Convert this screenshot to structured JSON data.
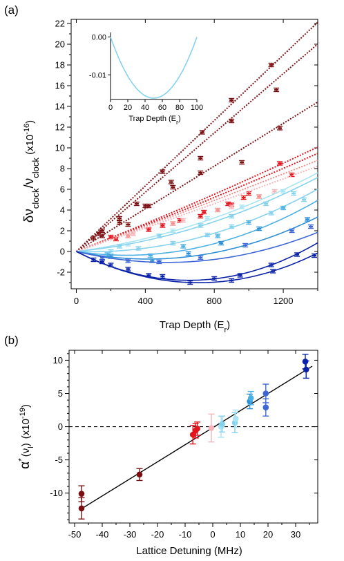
{
  "panels": {
    "a": "(a)",
    "b": "(b)"
  },
  "colors": {
    "darkred": "#7a0f12",
    "red": "#e0141c",
    "salmon": "#f38d8a",
    "pink": "#f5b4b9",
    "paleblue": "#a8e4f2",
    "lightblue": "#86d2ee",
    "skyblue": "#4cb0e4",
    "blue": "#2f8fd6",
    "medblue": "#3d67d6",
    "darkblue": "#0a22a8"
  },
  "chart_data": [
    {
      "type": "line",
      "panel": "(a)",
      "xlabel_main": "Trap Depth (E",
      "xlabel_sub": "r",
      "xlabel_end": ")",
      "ylabel": {
        "delta": "δν",
        "sub1": "clock",
        "slash": "/ν",
        "sub2": "clock",
        "mult": " (x10",
        "exp": "-16",
        "end": ")"
      },
      "xlim": [
        -30,
        1400
      ],
      "ylim": [
        -3.6,
        22.4
      ],
      "xticks": [
        0,
        400,
        800,
        1200
      ],
      "yticks": [
        -2,
        0,
        2,
        4,
        6,
        8,
        10,
        12,
        14,
        16,
        18,
        20,
        22
      ],
      "series": [
        {
          "color": "#7a0f12",
          "style": "dotted",
          "a": 0.0158,
          "b": 0.0,
          "points": [
            [
              100,
              1.3
            ],
            [
              150,
              2.0
            ],
            [
              250,
              3.2
            ],
            [
              350,
              4.6
            ],
            [
              500,
              7.7
            ],
            [
              730,
              11.5
            ],
            [
              900,
              14.6
            ],
            [
              1130,
              18.0
            ]
          ]
        },
        {
          "color": "#7a0f12",
          "style": "dotted",
          "a": 0.0143,
          "b": 0.0,
          "points": [
            [
              130,
              1.7
            ],
            [
              250,
              2.8
            ],
            [
              400,
              4.4
            ],
            [
              550,
              6.7
            ],
            [
              720,
              9.0
            ],
            [
              900,
              12.6
            ],
            [
              1160,
              15.6
            ]
          ]
        },
        {
          "color": "#7a0f12",
          "style": "dotted",
          "a": 0.0103,
          "b": 0.0,
          "points": [
            [
              150,
              1.5
            ],
            [
              300,
              2.6
            ],
            [
              420,
              4.4
            ],
            [
              560,
              6.2
            ],
            [
              720,
              7.6
            ],
            [
              960,
              8.6
            ],
            [
              1180,
              11.9
            ]
          ]
        },
        {
          "color": "#e0141c",
          "style": "dotted",
          "a": 0.0065,
          "b": 5e-07,
          "points": [
            [
              200,
              1.4
            ],
            [
              420,
              2.1
            ],
            [
              600,
              3.0
            ],
            [
              720,
              3.4
            ],
            [
              900,
              4.5
            ],
            [
              970,
              5.2
            ],
            [
              1180,
              8.5
            ]
          ]
        },
        {
          "color": "#e0141c",
          "style": "dotted",
          "a": 0.0062,
          "b": 4e-07,
          "points": [
            [
              230,
              1.2
            ],
            [
              500,
              2.5
            ],
            [
              740,
              3.8
            ],
            [
              880,
              4.6
            ],
            [
              1000,
              5.6
            ],
            [
              1250,
              7.4
            ]
          ]
        },
        {
          "color": "#f38d8a",
          "style": "dotted",
          "a": 0.006,
          "b": 2e-07,
          "points": [
            [
              300,
              1.5
            ],
            [
              560,
              2.7
            ],
            [
              820,
              4.0
            ],
            [
              1060,
              5.3
            ]
          ]
        },
        {
          "color": "#f5b4b9",
          "style": "dotted",
          "a": 0.0056,
          "b": 2e-07,
          "points": [
            [
              330,
              1.7
            ],
            [
              620,
              3.0
            ],
            [
              900,
              4.3
            ],
            [
              1150,
              5.8
            ]
          ]
        },
        {
          "color": "#a8e4f2",
          "style": "solid",
          "a": 0.0022,
          "b": 2.3e-06,
          "points": [
            [
              300,
              0.7
            ],
            [
              560,
              2.0
            ],
            [
              760,
              3.2
            ],
            [
              960,
              4.3
            ],
            [
              1200,
              5.8
            ]
          ]
        },
        {
          "color": "#86d2ee",
          "style": "solid",
          "a": 0.0016,
          "b": 2.5e-06,
          "points": [
            [
              250,
              0.5
            ],
            [
              480,
              1.5
            ],
            [
              720,
              2.5
            ],
            [
              900,
              3.4
            ],
            [
              1100,
              4.6
            ],
            [
              1260,
              5.6
            ]
          ]
        },
        {
          "color": "#86d2ee",
          "style": "solid",
          "a": -0.0006,
          "b": 3.5e-06,
          "points": [
            [
              200,
              0.0
            ],
            [
              360,
              0.3
            ],
            [
              560,
              0.8
            ],
            [
              760,
              1.6
            ],
            [
              900,
              2.4
            ],
            [
              1130,
              3.7
            ],
            [
              1320,
              5.0
            ]
          ]
        },
        {
          "color": "#4cb0e4",
          "style": "solid",
          "a": -0.0025,
          "b": 4.3e-06,
          "points": [
            [
              180,
              -0.3
            ],
            [
              430,
              -0.4
            ],
            [
              620,
              0.5
            ],
            [
              820,
              1.5
            ],
            [
              1000,
              2.8
            ],
            [
              1200,
              4.2
            ]
          ]
        },
        {
          "color": "#2f8fd6",
          "style": "solid",
          "a": -0.0035,
          "b": 4.2e-06,
          "points": [
            [
              200,
              -0.5
            ],
            [
              440,
              -0.9
            ],
            [
              650,
              -0.2
            ],
            [
              840,
              0.8
            ],
            [
              1060,
              2.2
            ],
            [
              1340,
              3.1
            ]
          ]
        },
        {
          "color": "#3d67d6",
          "style": "solid",
          "a": -0.004,
          "b": 3.8e-06,
          "points": [
            [
              150,
              -0.6
            ],
            [
              300,
              -0.9
            ],
            [
              480,
              -1.0
            ],
            [
              720,
              -0.6
            ],
            [
              980,
              0.6
            ],
            [
              1250,
              2.0
            ],
            [
              1360,
              2.4
            ]
          ]
        },
        {
          "color": "#0a22a8",
          "style": "solid",
          "a": -0.0085,
          "b": 6.5e-06,
          "points": [
            [
              150,
              -1.0
            ],
            [
              300,
              -1.7
            ],
            [
              500,
              -2.4
            ],
            [
              800,
              -2.6
            ],
            [
              950,
              -2.3
            ],
            [
              1130,
              -1.3
            ],
            [
              1280,
              -0.3
            ]
          ]
        },
        {
          "color": "#0a22a8",
          "style": "solid",
          "a": -0.0085,
          "b": 6e-06,
          "points": [
            [
              100,
              -0.8
            ],
            [
              200,
              -1.3
            ],
            [
              420,
              -2.3
            ],
            [
              660,
              -3.0
            ],
            [
              900,
              -2.8
            ],
            [
              1140,
              -1.9
            ],
            [
              1380,
              -0.4
            ]
          ]
        }
      ],
      "inset": {
        "xlabel_main": "Trap Depth (E",
        "xlabel_sub": "r",
        "xlabel_end": ")",
        "xlim": [
          0,
          100
        ],
        "ylim": [
          -0.0165,
          0.0012
        ],
        "xticks": [
          0,
          20,
          40,
          60,
          80,
          100
        ],
        "yticks": [
          0.0,
          -0.01
        ],
        "ytick_labels": [
          "0.00",
          "-0.01"
        ],
        "color": "#86d2ee",
        "curve": {
          "a": -0.000646,
          "b": 6.46e-06
        }
      }
    },
    {
      "type": "scatter",
      "panel": "(b)",
      "xlabel": "Lattice Detuning (MHz)",
      "ylabel": {
        "alpha": "α",
        "star": "*",
        "nu": "(ν",
        "sub": "l",
        "end": ")",
        "mult": "(x10",
        "exp": "-19",
        "close": ")"
      },
      "xlim": [
        -52,
        38
      ],
      "ylim": [
        -14.5,
        11.5
      ],
      "xticks": [
        -50,
        -40,
        -30,
        -20,
        -10,
        0,
        10,
        20,
        30
      ],
      "yticks": [
        -10,
        -5,
        0,
        5,
        10
      ],
      "fit_line": {
        "slope": 0.257,
        "intercept": -0.15,
        "x_range": [
          -48,
          36
        ]
      },
      "zero_line": {
        "y": 0
      },
      "points": [
        {
          "x": -47.5,
          "y": -10.1,
          "err": 1.2,
          "color": "#7a0f12"
        },
        {
          "x": -47.5,
          "y": -12.3,
          "err": 1.6,
          "color": "#7a0f12"
        },
        {
          "x": -26.5,
          "y": -7.2,
          "err": 0.9,
          "color": "#7a0f12"
        },
        {
          "x": -7.2,
          "y": -1.2,
          "err": 1.4,
          "color": "#e0141c"
        },
        {
          "x": -6.2,
          "y": -0.6,
          "err": 1.1,
          "color": "#e0141c"
        },
        {
          "x": -5.6,
          "y": -0.3,
          "err": 1.0,
          "color": "#e0141c"
        },
        {
          "x": -0.5,
          "y": -0.2,
          "err": 2.1,
          "color": "#f5b4b9"
        },
        {
          "x": 3.0,
          "y": 0.0,
          "err": 1.6,
          "color": "#a8e4f2"
        },
        {
          "x": 3.4,
          "y": 0.4,
          "err": 1.2,
          "color": "#86d2ee"
        },
        {
          "x": 8.0,
          "y": 0.6,
          "err": 1.5,
          "color": "#86d2ee"
        },
        {
          "x": 8.3,
          "y": 1.2,
          "err": 1.3,
          "color": "#a8e4f2"
        },
        {
          "x": 13.4,
          "y": 3.8,
          "err": 1.1,
          "color": "#2f8fd6"
        },
        {
          "x": 13.8,
          "y": 4.3,
          "err": 1.0,
          "color": "#4cb0e4"
        },
        {
          "x": 19.2,
          "y": 2.9,
          "err": 1.3,
          "color": "#3d67d6"
        },
        {
          "x": 19.2,
          "y": 5.0,
          "err": 1.4,
          "color": "#3d67d6"
        },
        {
          "x": 33.5,
          "y": 9.8,
          "err": 1.1,
          "color": "#0a22a8"
        },
        {
          "x": 33.8,
          "y": 8.6,
          "err": 1.3,
          "color": "#0a22a8"
        }
      ]
    }
  ]
}
